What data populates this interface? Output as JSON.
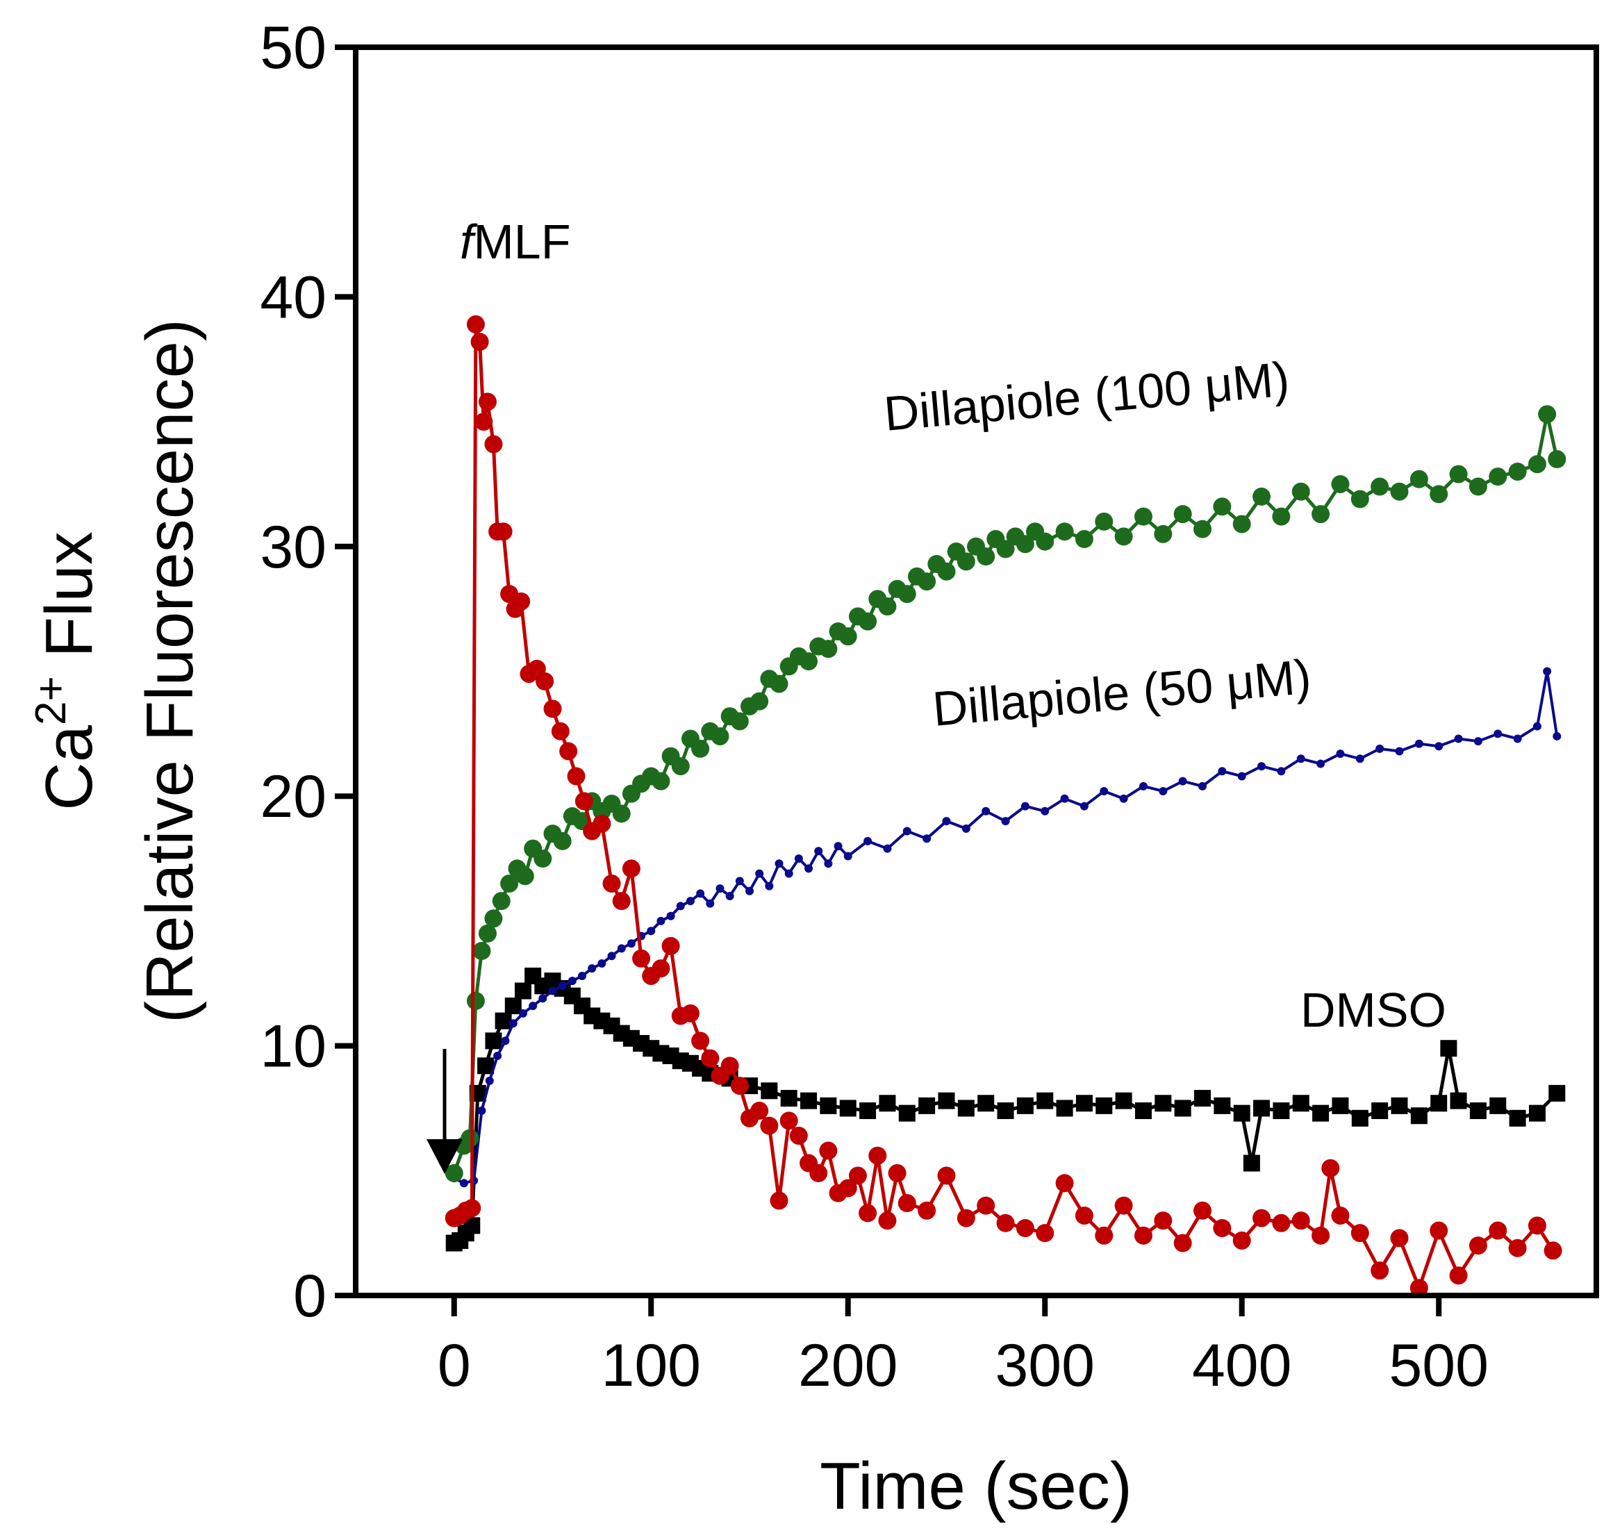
{
  "chart_data": {
    "type": "scatter",
    "title": "",
    "xlabel": "Time (sec)",
    "ylabel_line1_prefix": "Ca",
    "ylabel_line1_sup": "2+",
    "ylabel_line1_suffix": " Flux",
    "ylabel_line2": "(Relative Fluorescence)",
    "xlim": [
      -50,
      580
    ],
    "ylim": [
      0,
      50
    ],
    "xticks": [
      0,
      100,
      200,
      300,
      400,
      500
    ],
    "yticks": [
      0,
      10,
      20,
      30,
      40,
      50
    ],
    "grid": false,
    "legend": "none (inline annotations)",
    "annotations": {
      "fmlf_prefix": "f",
      "fmlf_suffix": "MLF",
      "dill100": "Dillapiole  (100 μM)",
      "dill50": "Dillapiole (50 μM)",
      "dmso": "DMSO"
    },
    "series": [
      {
        "name": "fMLF",
        "color": "#c00000",
        "marker": "circle",
        "x": [
          0,
          3,
          6,
          9,
          11,
          13,
          15,
          17,
          20,
          22,
          25,
          28,
          31,
          34,
          38,
          42,
          46,
          50,
          54,
          58,
          62,
          66,
          70,
          75,
          80,
          85,
          90,
          95,
          100,
          105,
          110,
          115,
          120,
          125,
          130,
          135,
          140,
          145,
          150,
          155,
          160,
          165,
          170,
          175,
          180,
          185,
          190,
          195,
          200,
          205,
          210,
          215,
          220,
          225,
          230,
          240,
          250,
          260,
          270,
          280,
          290,
          300,
          310,
          320,
          330,
          340,
          350,
          360,
          370,
          380,
          390,
          400,
          410,
          420,
          430,
          440,
          445,
          450,
          460,
          470,
          480,
          490,
          500,
          510,
          520,
          530,
          540,
          550,
          558
        ],
        "y": [
          3.1,
          3.2,
          3.4,
          3.5,
          38.9,
          38.2,
          35.0,
          35.8,
          34.1,
          30.6,
          30.6,
          28.1,
          27.5,
          27.8,
          24.9,
          25.1,
          24.6,
          23.5,
          22.6,
          21.8,
          20.8,
          19.8,
          18.6,
          18.9,
          16.5,
          15.8,
          17.1,
          13.5,
          12.8,
          13.1,
          14.0,
          11.2,
          11.3,
          10.2,
          9.5,
          8.8,
          9.2,
          8.4,
          7.1,
          7.4,
          6.8,
          3.8,
          7.0,
          6.4,
          5.3,
          4.9,
          5.8,
          4.1,
          4.3,
          4.8,
          3.3,
          5.6,
          3.0,
          4.9,
          3.7,
          3.4,
          4.8,
          3.1,
          3.6,
          2.9,
          2.7,
          2.5,
          4.5,
          3.2,
          2.4,
          3.6,
          2.4,
          3.0,
          2.1,
          3.4,
          2.7,
          2.2,
          3.1,
          2.9,
          3.0,
          2.4,
          5.1,
          3.2,
          2.5,
          1.0,
          2.3,
          0.3,
          2.6,
          0.8,
          2.0,
          2.6,
          1.9,
          2.8,
          1.8
        ]
      },
      {
        "name": "Dillapiole (100 μM)",
        "color": "#1e6b1e",
        "marker": "circle",
        "x": [
          0,
          5,
          8,
          11,
          14,
          17,
          20,
          24,
          28,
          32,
          36,
          40,
          45,
          50,
          55,
          60,
          65,
          70,
          75,
          80,
          85,
          90,
          95,
          100,
          105,
          110,
          115,
          120,
          125,
          130,
          135,
          140,
          145,
          150,
          155,
          160,
          165,
          170,
          175,
          180,
          185,
          190,
          195,
          200,
          205,
          210,
          215,
          220,
          225,
          230,
          235,
          240,
          245,
          250,
          255,
          260,
          265,
          270,
          275,
          280,
          285,
          290,
          295,
          300,
          310,
          320,
          330,
          340,
          350,
          360,
          370,
          380,
          390,
          400,
          410,
          420,
          430,
          440,
          450,
          460,
          470,
          480,
          490,
          500,
          510,
          520,
          530,
          540,
          550,
          555,
          560
        ],
        "y": [
          4.9,
          6.0,
          6.3,
          11.8,
          13.8,
          14.5,
          15.1,
          15.8,
          16.5,
          17.1,
          16.8,
          17.9,
          17.5,
          18.5,
          18.2,
          19.2,
          19.0,
          19.8,
          19.4,
          19.7,
          19.3,
          20.1,
          20.5,
          20.8,
          20.6,
          21.6,
          21.2,
          22.3,
          21.9,
          22.6,
          22.4,
          23.2,
          23.0,
          23.6,
          23.8,
          24.7,
          24.5,
          25.2,
          25.6,
          25.4,
          26.0,
          25.9,
          26.6,
          26.4,
          27.2,
          27.0,
          27.9,
          27.6,
          28.3,
          28.1,
          28.8,
          28.6,
          29.3,
          29.0,
          29.8,
          29.4,
          30.0,
          29.6,
          30.3,
          29.9,
          30.4,
          30.1,
          30.6,
          30.2,
          30.6,
          30.3,
          31.0,
          30.4,
          31.2,
          30.5,
          31.3,
          30.7,
          31.6,
          30.9,
          32.0,
          31.2,
          32.2,
          31.3,
          32.5,
          31.9,
          32.4,
          32.2,
          32.7,
          32.1,
          32.9,
          32.4,
          32.8,
          33.0,
          33.3,
          35.3,
          33.5
        ]
      },
      {
        "name": "Dillapiole (50 μM)",
        "color": "#0a0a8c",
        "marker": "circle",
        "x": [
          0,
          5,
          10,
          14,
          18,
          22,
          26,
          30,
          35,
          40,
          45,
          50,
          55,
          60,
          65,
          70,
          75,
          80,
          85,
          90,
          95,
          100,
          105,
          110,
          115,
          120,
          125,
          130,
          135,
          140,
          145,
          150,
          155,
          160,
          165,
          170,
          175,
          180,
          185,
          190,
          195,
          200,
          210,
          220,
          230,
          240,
          250,
          260,
          270,
          280,
          290,
          300,
          310,
          320,
          330,
          340,
          350,
          360,
          370,
          380,
          390,
          400,
          410,
          420,
          430,
          440,
          450,
          460,
          470,
          480,
          490,
          500,
          510,
          520,
          530,
          540,
          550,
          555,
          560
        ],
        "y": [
          4.7,
          4.5,
          4.6,
          7.4,
          8.6,
          9.6,
          10.2,
          10.9,
          11.3,
          11.6,
          11.9,
          12.2,
          12.4,
          12.6,
          12.8,
          13.1,
          13.3,
          13.6,
          13.9,
          14.1,
          14.4,
          14.6,
          15.0,
          15.2,
          15.6,
          15.8,
          16.1,
          15.7,
          16.3,
          16.0,
          16.6,
          16.2,
          16.9,
          16.4,
          17.3,
          16.9,
          17.5,
          17.1,
          17.8,
          17.3,
          18.0,
          17.6,
          18.2,
          17.9,
          18.6,
          18.3,
          19.0,
          18.7,
          19.4,
          19.0,
          19.6,
          19.4,
          19.9,
          19.6,
          20.2,
          19.9,
          20.4,
          20.2,
          20.6,
          20.4,
          21.0,
          20.8,
          21.2,
          21.0,
          21.5,
          21.3,
          21.7,
          21.5,
          21.9,
          21.8,
          22.1,
          22.0,
          22.3,
          22.2,
          22.5,
          22.3,
          22.8,
          25.0,
          22.4
        ]
      },
      {
        "name": "DMSO",
        "color": "#000000",
        "marker": "square",
        "x": [
          0,
          3,
          6,
          9,
          12,
          16,
          20,
          25,
          30,
          35,
          40,
          45,
          50,
          55,
          60,
          65,
          70,
          75,
          80,
          85,
          90,
          95,
          100,
          105,
          110,
          115,
          120,
          125,
          130,
          140,
          150,
          160,
          170,
          180,
          190,
          200,
          210,
          220,
          230,
          240,
          250,
          260,
          270,
          280,
          290,
          300,
          310,
          320,
          330,
          340,
          350,
          360,
          370,
          380,
          390,
          400,
          405,
          410,
          420,
          430,
          440,
          450,
          460,
          470,
          480,
          490,
          500,
          505,
          510,
          520,
          530,
          540,
          550,
          560
        ],
        "y": [
          2.1,
          2.2,
          2.5,
          2.8,
          8.1,
          9.2,
          10.2,
          11.0,
          11.6,
          12.2,
          12.8,
          12.4,
          12.6,
          12.3,
          12.0,
          11.6,
          11.2,
          11.0,
          10.8,
          10.5,
          10.3,
          10.1,
          9.9,
          9.7,
          9.6,
          9.4,
          9.3,
          9.1,
          8.9,
          8.7,
          8.4,
          8.2,
          7.9,
          7.8,
          7.6,
          7.5,
          7.4,
          7.7,
          7.3,
          7.6,
          7.8,
          7.5,
          7.7,
          7.4,
          7.6,
          7.8,
          7.5,
          7.7,
          7.6,
          7.8,
          7.4,
          7.7,
          7.5,
          7.9,
          7.6,
          7.3,
          5.3,
          7.5,
          7.4,
          7.7,
          7.3,
          7.6,
          7.1,
          7.4,
          7.6,
          7.2,
          7.7,
          9.9,
          7.8,
          7.4,
          7.6,
          7.1,
          7.3,
          8.1
        ]
      }
    ]
  }
}
